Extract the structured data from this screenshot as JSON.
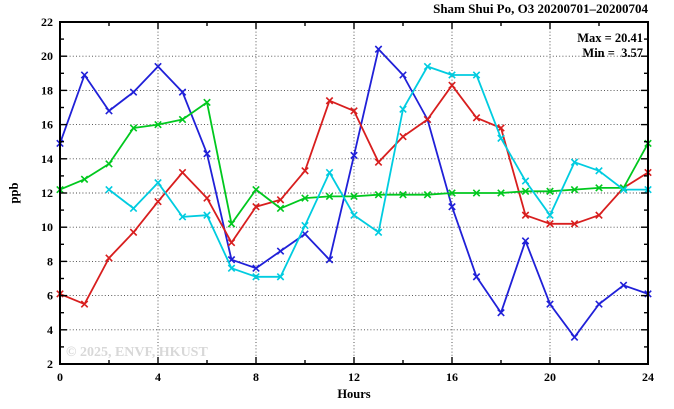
{
  "title": "Sham Shui Po, O3 20200701–20200704",
  "annotation": {
    "max_label": "Max = 20.41",
    "min_label": "Min =  3.57"
  },
  "watermark": "© 2025, ENVF, HKUST",
  "chart_data": {
    "type": "line",
    "title": "Sham Shui Po, O3 20200701–20200704",
    "xlabel": "Hours",
    "ylabel": "ppb",
    "xlim": [
      0,
      24
    ],
    "ylim": [
      2,
      22
    ],
    "x_major_ticks": [
      0,
      4,
      8,
      12,
      16,
      20,
      24
    ],
    "x_minor_step": 2,
    "y_major_step": 2,
    "y_minor_step": 1,
    "grid": "dotted",
    "vgrid_hours": [
      4,
      8,
      12,
      16,
      20
    ],
    "legend_position": "none",
    "stat_max": 20.41,
    "stat_min": 3.57,
    "series": [
      {
        "name": "day-1-blue",
        "color": "#2020d8",
        "x": [
          0,
          1,
          2,
          3,
          4,
          5,
          6,
          7,
          8,
          9,
          10,
          11,
          12,
          13,
          14,
          15,
          16,
          17,
          18,
          19,
          20,
          21,
          22,
          23,
          24
        ],
        "values": [
          14.9,
          18.9,
          16.8,
          17.9,
          19.4,
          17.9,
          14.3,
          8.1,
          7.6,
          8.6,
          9.6,
          8.1,
          14.2,
          20.41,
          18.9,
          16.3,
          11.2,
          7.1,
          5.0,
          9.2,
          5.5,
          3.57,
          5.5,
          6.6,
          6.1
        ]
      },
      {
        "name": "day-2-red",
        "color": "#d81e1e",
        "x": [
          0,
          1,
          2,
          3,
          4,
          5,
          6,
          7,
          8,
          9,
          10,
          11,
          12,
          13,
          14,
          15,
          16,
          17,
          18,
          19,
          20,
          21,
          22,
          23,
          24
        ],
        "values": [
          6.1,
          5.5,
          8.2,
          9.7,
          11.5,
          13.2,
          11.7,
          9.1,
          11.2,
          11.6,
          13.3,
          17.4,
          16.8,
          13.8,
          15.3,
          16.3,
          18.3,
          16.4,
          15.8,
          10.7,
          10.2,
          10.2,
          10.7,
          12.3,
          13.2
        ]
      },
      {
        "name": "day-3-green",
        "color": "#00c81e",
        "x": [
          0,
          1,
          2,
          3,
          4,
          5,
          6,
          7,
          8,
          9,
          10,
          11,
          12,
          13,
          14,
          15,
          16,
          17,
          18,
          19,
          20,
          21,
          22,
          23,
          24
        ],
        "values": [
          12.2,
          12.8,
          13.7,
          15.8,
          16.0,
          16.3,
          17.3,
          10.2,
          12.2,
          11.1,
          11.7,
          11.8,
          11.8,
          11.9,
          11.9,
          11.9,
          12.0,
          12.0,
          12.0,
          12.1,
          12.1,
          12.2,
          12.3,
          12.3,
          14.9
        ]
      },
      {
        "name": "day-4-cyan",
        "color": "#00cce0",
        "x": [
          2,
          3,
          4,
          5,
          6,
          7,
          8,
          9,
          10,
          11,
          12,
          13,
          14,
          15,
          16,
          17,
          18,
          19,
          20,
          21,
          22,
          23,
          24
        ],
        "values": [
          12.2,
          11.1,
          12.6,
          10.6,
          10.7,
          7.6,
          7.1,
          7.1,
          10.1,
          13.2,
          10.7,
          9.7,
          16.9,
          19.4,
          18.9,
          18.9,
          15.2,
          12.7,
          10.7,
          13.8,
          13.3,
          12.2,
          12.2
        ]
      }
    ]
  }
}
